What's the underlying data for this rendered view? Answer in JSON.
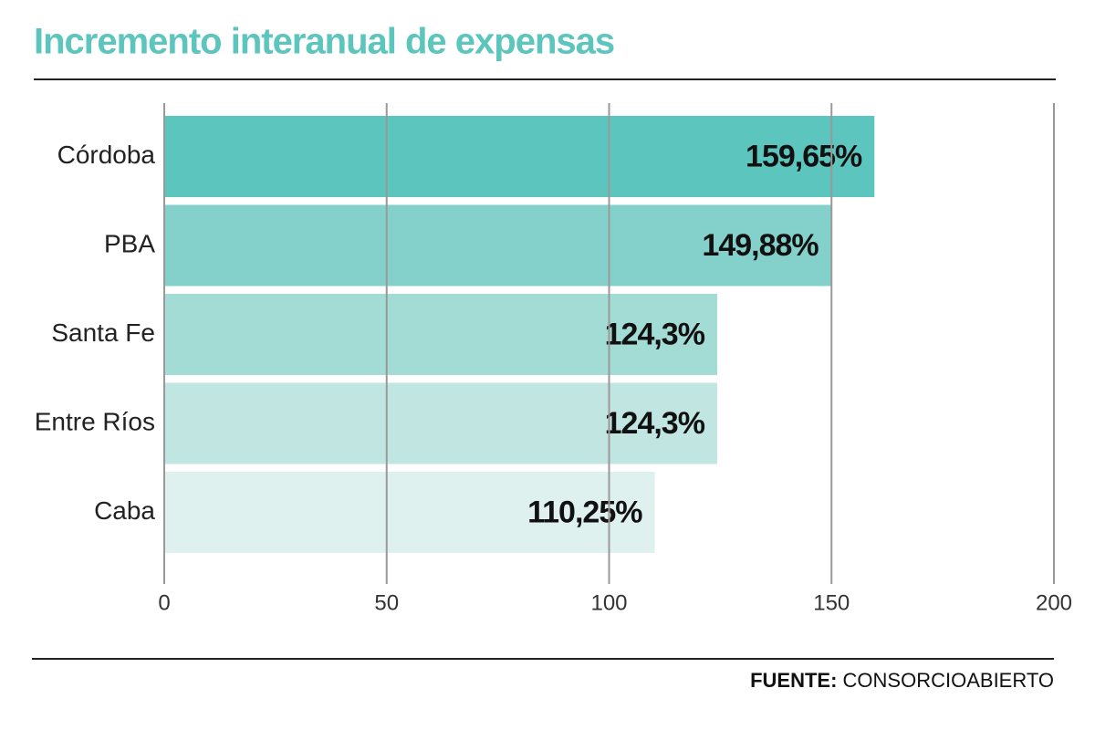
{
  "chart_data": {
    "type": "barh",
    "title": "Incremento interanual de expensas",
    "categories": [
      "Córdoba",
      "PBA",
      "Santa Fe",
      "Entre Ríos",
      "Caba"
    ],
    "values": [
      159.65,
      149.88,
      124.3,
      124.3,
      110.25
    ],
    "value_labels": [
      "159,65%",
      "149,88%",
      "124,3%",
      "124,3%",
      "110,25%"
    ],
    "colors": [
      "#5cc5bd",
      "#83d1ca",
      "#a3dbd5",
      "#c1e6e2",
      "#dff1ef"
    ],
    "xlim": [
      0,
      200
    ],
    "xticks": [
      0,
      50,
      100,
      150,
      200
    ],
    "grid": true,
    "source_label": "FUENTE:",
    "source": "CONSORCIOABIERTO"
  }
}
